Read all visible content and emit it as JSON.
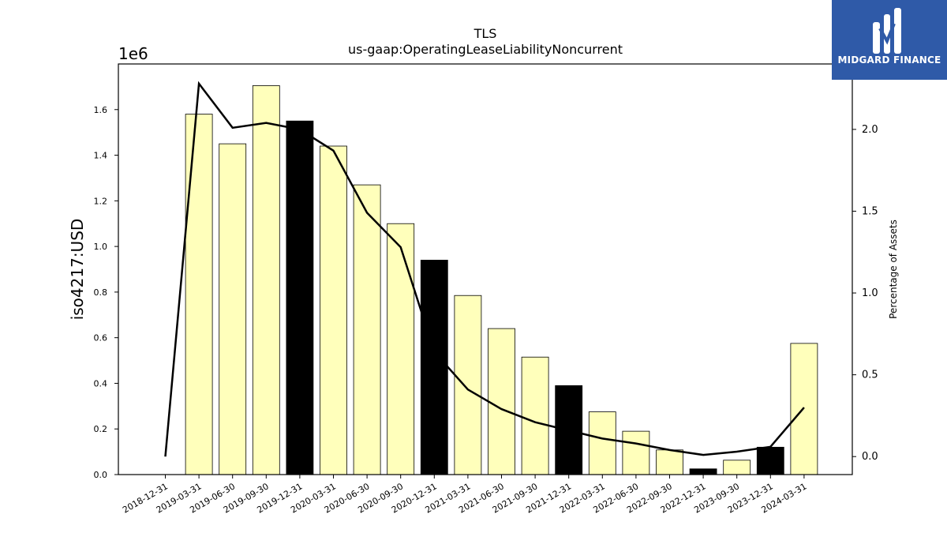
{
  "chart_data": {
    "type": "bar",
    "title": "TLS",
    "subtitle": "us-gaap:OperatingLeaseLiabilityNoncurrent",
    "ylabel": "iso4217:USD",
    "y_offset_label": "1e6",
    "y2label": "Percentage of Assets",
    "ylim": [
      0,
      1.8
    ],
    "y2lim": [
      -0.11,
      2.4
    ],
    "yticks": [
      "0.0",
      "0.2",
      "0.4",
      "0.6",
      "0.8",
      "1.0",
      "1.2",
      "1.4",
      "1.6"
    ],
    "y2ticks": [
      "0.0",
      "0.5",
      "1.0",
      "1.5",
      "2.0"
    ],
    "categories": [
      "2018-12-31",
      "2019-03-31",
      "2019-06-30",
      "2019-09-30",
      "2019-12-31",
      "2020-03-31",
      "2020-06-30",
      "2020-09-30",
      "2020-12-31",
      "2021-03-31",
      "2021-06-30",
      "2021-09-30",
      "2021-12-31",
      "2022-03-31",
      "2022-06-30",
      "2022-09-30",
      "2022-12-31",
      "2023-09-30",
      "2023-12-31",
      "2024-03-31"
    ],
    "values": [
      0,
      1.58,
      1.45,
      1.705,
      1.55,
      1.44,
      1.27,
      1.1,
      0.94,
      0.785,
      0.64,
      0.515,
      0.39,
      0.275,
      0.19,
      0.108,
      0.025,
      0.063,
      0.12,
      0.575
    ],
    "bar_highlight": [
      false,
      false,
      false,
      false,
      true,
      false,
      false,
      false,
      true,
      false,
      false,
      false,
      true,
      false,
      false,
      false,
      true,
      false,
      true,
      false
    ],
    "percent_of_assets": [
      0.0,
      2.28,
      2.01,
      2.04,
      2.0,
      1.87,
      1.49,
      1.28,
      0.64,
      0.41,
      0.29,
      0.21,
      0.16,
      0.11,
      0.08,
      0.04,
      0.01,
      0.03,
      0.06,
      0.3
    ],
    "colors": {
      "bar": "#ffffbb",
      "bar_highlight": "#000000",
      "line": "#000000"
    }
  },
  "logo": {
    "text": "MIDGARD FINANCE",
    "icon": "midgard-logo-icon",
    "color": "#2f5aa8"
  }
}
